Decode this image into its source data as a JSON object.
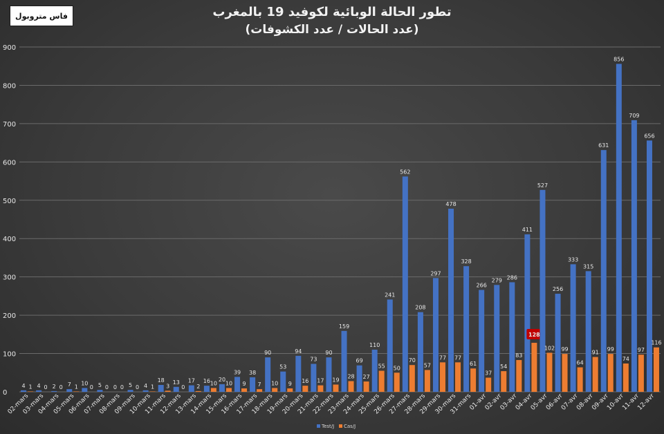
{
  "header": {
    "badge": "فاس متروبول",
    "title_line1": "تطور الحالة الوبائية لكوفيد 19 بالمغرب",
    "title_line2": "(عدد  الحالات / عدد الكشوفات)"
  },
  "chart_data": {
    "type": "bar",
    "title": "تطور الحالة الوبائية لكوفيد 19 بالمغرب",
    "subtitle": "(عدد  الحالات / عدد الكشوفات)",
    "categories": [
      "02-mars",
      "03-mars",
      "04-mars",
      "05-mars",
      "06-mars",
      "07-mars",
      "08-mars",
      "09-mars",
      "10-mars",
      "11-mars",
      "12-mars",
      "13-mars",
      "14-mars",
      "15-mars",
      "16-mars",
      "17-mars",
      "18-mars",
      "19-mars",
      "20-mars",
      "21-mars",
      "22-mars",
      "23-mars",
      "24-mars",
      "25-mars",
      "26-mars",
      "27-mars",
      "28-mars",
      "29-mars",
      "30-mars",
      "31-mars",
      "01-avr",
      "02-avr",
      "03-avr",
      "04-avr",
      "05-avr",
      "06-avr",
      "07-avr",
      "08-avr",
      "09-avr",
      "10-avr",
      "11-avr",
      "12-avr"
    ],
    "series": [
      {
        "name": "Test/J",
        "color": "#4472c4",
        "values": [
          4,
          4,
          2,
          7,
          10,
          5,
          0,
          5,
          4,
          18,
          13,
          17,
          16,
          20,
          39,
          38,
          90,
          53,
          94,
          73,
          90,
          159,
          69,
          110,
          241,
          562,
          208,
          297,
          478,
          328,
          266,
          279,
          286,
          411,
          527,
          256,
          333,
          315,
          631,
          856,
          709,
          656
        ]
      },
      {
        "name": "Cas/J",
        "color": "#ed7d31",
        "values": [
          1,
          0,
          0,
          1,
          0,
          0,
          0,
          0,
          1,
          3,
          0,
          2,
          10,
          10,
          9,
          7,
          10,
          9,
          16,
          17,
          19,
          28,
          27,
          55,
          50,
          70,
          57,
          77,
          77,
          61,
          37,
          54,
          83,
          128,
          102,
          99,
          64,
          91,
          99,
          74,
          97,
          116
        ]
      }
    ],
    "highlight": {
      "series": "Cas/J",
      "category": "04-avr",
      "value": 128,
      "color": "#c00000"
    },
    "ylim": [
      0,
      900
    ],
    "yticks": [
      0,
      100,
      200,
      300,
      400,
      500,
      600,
      700,
      800,
      900
    ],
    "grid": true,
    "legend_position": "bottom"
  }
}
